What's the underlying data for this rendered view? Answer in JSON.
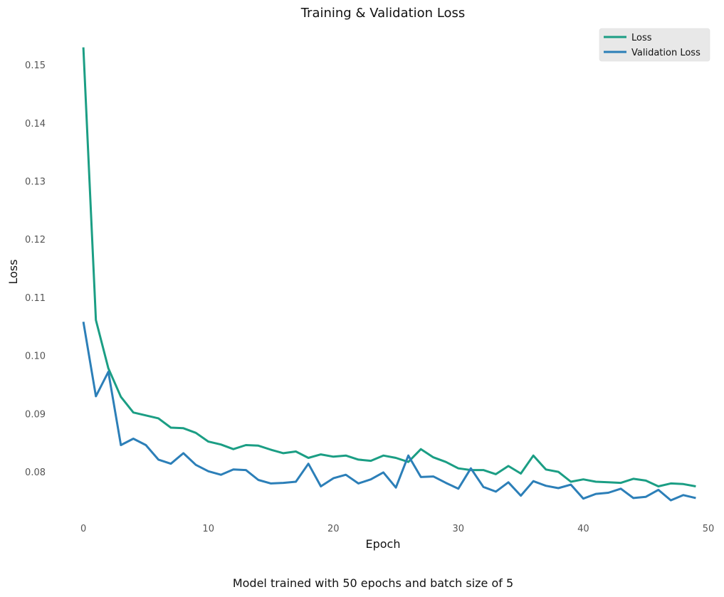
{
  "chart_data": {
    "type": "line",
    "title": "Training & Validation Loss",
    "xlabel": "Epoch",
    "ylabel": "Loss",
    "caption": "Model trained with 50 epochs and batch size of 5",
    "xlim": [
      -2,
      50
    ],
    "ylim": [
      0.0712,
      0.1565
    ],
    "xticks": [
      0,
      10,
      20,
      30,
      40,
      50
    ],
    "yticks": [
      0.08,
      0.09,
      0.1,
      0.11,
      0.12,
      0.13,
      0.14,
      0.15
    ],
    "ytick_labels": [
      "0.08",
      "0.09",
      "0.10",
      "0.11",
      "0.12",
      "0.13",
      "0.14",
      "0.15"
    ],
    "grid": false,
    "legend_position": "top-right",
    "x": [
      0,
      1,
      2,
      3,
      4,
      5,
      6,
      7,
      8,
      9,
      10,
      11,
      12,
      13,
      14,
      15,
      16,
      17,
      18,
      19,
      20,
      21,
      22,
      23,
      24,
      25,
      26,
      27,
      28,
      29,
      30,
      31,
      32,
      33,
      34,
      35,
      36,
      37,
      38,
      39,
      40,
      41,
      42,
      43,
      44,
      45,
      46,
      47,
      48,
      49
    ],
    "series": [
      {
        "name": "Loss",
        "color": "#1b9e84",
        "values": [
          0.153,
          0.1061,
          0.0978,
          0.0929,
          0.0902,
          0.0897,
          0.0892,
          0.0876,
          0.0875,
          0.0867,
          0.0852,
          0.0847,
          0.0839,
          0.0846,
          0.0845,
          0.0838,
          0.0832,
          0.0835,
          0.0824,
          0.083,
          0.0826,
          0.0828,
          0.0821,
          0.0819,
          0.0828,
          0.0824,
          0.0817,
          0.0839,
          0.0825,
          0.0817,
          0.0806,
          0.0803,
          0.0803,
          0.0796,
          0.081,
          0.0797,
          0.0828,
          0.0804,
          0.08,
          0.0783,
          0.0787,
          0.0783,
          0.0782,
          0.0781,
          0.0788,
          0.0785,
          0.0775,
          0.078,
          0.0779,
          0.0775
        ]
      },
      {
        "name": "Validation Loss",
        "color": "#2c7fb8",
        "values": [
          0.1058,
          0.093,
          0.0972,
          0.0846,
          0.0857,
          0.0846,
          0.0821,
          0.0814,
          0.0832,
          0.0812,
          0.0801,
          0.0795,
          0.0804,
          0.0803,
          0.0786,
          0.078,
          0.0781,
          0.0783,
          0.0814,
          0.0775,
          0.0789,
          0.0795,
          0.078,
          0.0787,
          0.0799,
          0.0773,
          0.0828,
          0.0791,
          0.0792,
          0.0781,
          0.0771,
          0.0806,
          0.0774,
          0.0766,
          0.0782,
          0.0759,
          0.0784,
          0.0776,
          0.0772,
          0.0778,
          0.0754,
          0.0762,
          0.0764,
          0.0771,
          0.0755,
          0.0757,
          0.0769,
          0.0751,
          0.076,
          0.0755
        ]
      }
    ]
  }
}
